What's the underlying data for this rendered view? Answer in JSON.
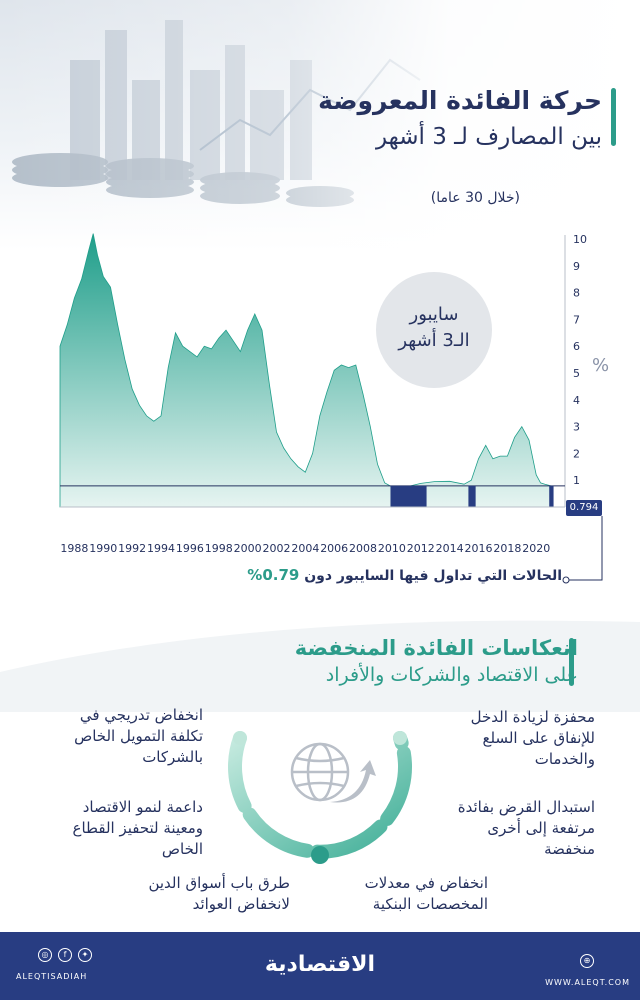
{
  "header": {
    "title": "حركة الفائدة المعروضة",
    "subtitle": "بين المصارف لـ 3 أشهر",
    "period": "(خلال 30 عاما)"
  },
  "chart_data": {
    "type": "area",
    "ylabel": "%",
    "ylim": [
      0,
      10
    ],
    "yticks": [
      "0",
      "1",
      "2",
      "3",
      "4",
      "5",
      "6",
      "7",
      "8",
      "9",
      "10"
    ],
    "xticks": [
      "1988",
      "1990",
      "1992",
      "1994",
      "1996",
      "1998",
      "2000",
      "2002",
      "2004",
      "2006",
      "2008",
      "2010",
      "2012",
      "2014",
      "2016",
      "2018",
      "2020"
    ],
    "xlim": [
      1987,
      2021.3
    ],
    "threshold": 0.79,
    "series_label": "سايبور",
    "series_label_2": "الـ3 أشهر",
    "current_value_label": "0.794",
    "series": [
      {
        "x": [
          1987.0,
          1987.5,
          1988.0,
          1988.5,
          1989.0,
          1989.3,
          1989.6,
          1990.0,
          1990.5,
          1991.0,
          1991.5,
          1992.0,
          1992.5,
          1993.0,
          1993.5,
          1994.0,
          1994.5,
          1995.0,
          1995.5,
          1996.0,
          1996.5,
          1997.0,
          1997.5,
          1998.0,
          1998.5,
          1999.0,
          1999.5,
          2000.0,
          2000.5,
          2001.0,
          2001.5,
          2002.0,
          2002.5,
          2003.0,
          2003.5,
          2004.0,
          2004.5,
          2005.0,
          2005.5,
          2006.0,
          2006.5,
          2007.0,
          2007.5,
          2008.0,
          2008.5,
          2009.0,
          2009.5,
          2010.0,
          2011.0,
          2012.0,
          2013.0,
          2014.0,
          2015.0,
          2015.5,
          2016.0,
          2016.5,
          2017.0,
          2017.5,
          2018.0,
          2018.5,
          2019.0,
          2019.5,
          2020.0,
          2020.3,
          2020.6,
          2021.0
        ],
        "y": [
          6.0,
          6.8,
          7.8,
          8.5,
          9.6,
          10.2,
          9.4,
          8.6,
          8.2,
          6.8,
          5.5,
          4.4,
          3.8,
          3.4,
          3.2,
          3.4,
          5.2,
          6.5,
          6.0,
          5.8,
          5.6,
          6.0,
          5.9,
          6.3,
          6.6,
          6.2,
          5.8,
          6.6,
          7.2,
          6.6,
          4.6,
          2.8,
          2.2,
          1.8,
          1.5,
          1.3,
          2.0,
          3.4,
          4.3,
          5.1,
          5.3,
          5.2,
          5.3,
          4.2,
          3.0,
          1.6,
          0.9,
          0.75,
          0.75,
          0.88,
          0.95,
          0.96,
          0.85,
          1.0,
          1.8,
          2.3,
          1.8,
          1.9,
          1.9,
          2.6,
          3.0,
          2.5,
          1.2,
          0.9,
          0.85,
          0.79
        ]
      }
    ],
    "below_threshold_ranges": [
      [
        2009.9,
        2012.4
      ],
      [
        2015.3,
        2015.8
      ],
      [
        2020.9,
        2021.2
      ]
    ]
  },
  "legend_note": {
    "text": "الحالات التي تداول فيها السايبور دون",
    "value": "0.79%"
  },
  "section": {
    "title": "انعكاسات الفائدة المنخفضة",
    "subtitle": "على الاقتصاد والشركات والأفراد"
  },
  "effects": {
    "right": [
      {
        "l1": "محفزة لزيادة الدخل",
        "l2": "للإنفاق على السلع",
        "l3": "والخدمات"
      },
      {
        "l1": "استبدال القرض بفائدة",
        "l2": "مرتفعة إلى أخرى",
        "l3": "منخفضة"
      },
      {
        "l1": "انخفاض في معدلات",
        "l2": "المخصصات البنكية"
      }
    ],
    "left": [
      {
        "l1": "انخفاض تدريجي في",
        "l2": "تكلفة التمويل الخاص",
        "l3": "بالشركات"
      },
      {
        "l1": "داعمة لنمو الاقتصاد",
        "l2": "ومعينة لتحفيز القطاع",
        "l3": "الخاص"
      },
      {
        "l1": "طرق باب أسواق الدين",
        "l2": "لانخفاض العوائد"
      }
    ]
  },
  "footer": {
    "logo": "الاقتصادية",
    "handle": "ALEQTISADIAH",
    "url": "WWW.ALEQT.COM"
  },
  "colors": {
    "navy": "#283d82",
    "teal": "#2c9c8a",
    "area_top": "#1f9e8a",
    "area_bottom": "#e6f4f1"
  }
}
